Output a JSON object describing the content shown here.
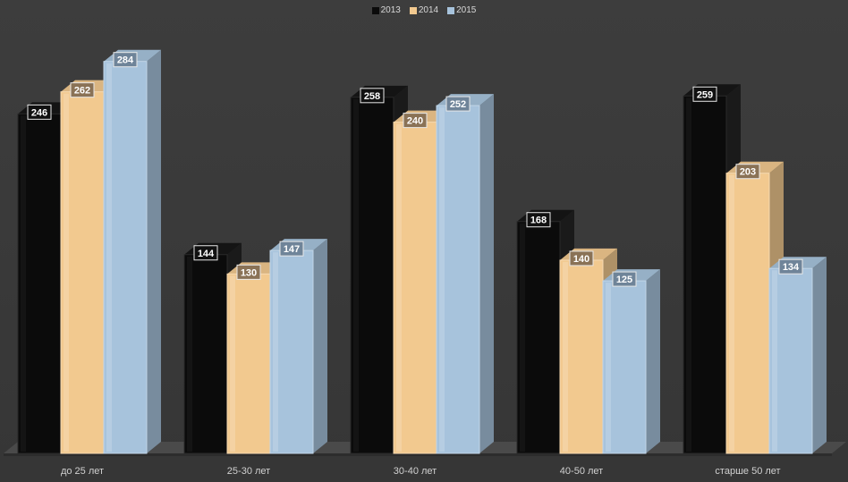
{
  "chart_data": {
    "type": "bar",
    "title": "",
    "xlabel": "",
    "ylabel": "",
    "ylim": [
      0,
      300
    ],
    "grid": false,
    "legend_position": "top-center",
    "categories": [
      "до 25 лет",
      "25-30 лет",
      "30-40 лет",
      "40-50 лет",
      "старше 50 лет"
    ],
    "series": [
      {
        "name": "2013",
        "color": "#0b0b0b",
        "values": [
          246,
          144,
          258,
          168,
          259
        ]
      },
      {
        "name": "2014",
        "color": "#f2c98f",
        "values": [
          262,
          130,
          240,
          140,
          203
        ]
      },
      {
        "name": "2015",
        "color": "#a7c3dc",
        "values": [
          284,
          147,
          252,
          125,
          134
        ]
      }
    ]
  }
}
